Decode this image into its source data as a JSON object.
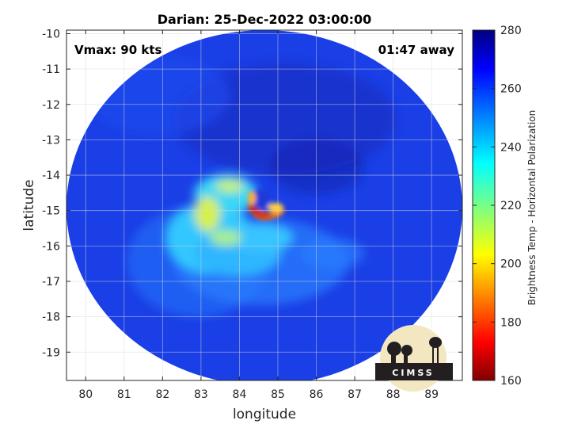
{
  "chart_data": {
    "type": "heatmap",
    "title": "Darian: 25-Dec-2022 03:00:00",
    "xlabel": "longitude",
    "ylabel": "latitude",
    "xlim": [
      79.5,
      89.8
    ],
    "ylim": [
      -19.8,
      -9.9
    ],
    "xticks": [
      80,
      81,
      82,
      83,
      84,
      85,
      86,
      87,
      88,
      89
    ],
    "yticks": [
      -10,
      -11,
      -12,
      -13,
      -14,
      -15,
      -16,
      -17,
      -18,
      -19
    ],
    "grid": true,
    "storm_center": {
      "lon": 84.5,
      "lat": -15.0
    },
    "eye_wall_min_temp": 175,
    "background_temp": 262,
    "annotations": {
      "vmax": "Vmax: 90 kts",
      "time_offset": "01:47 away"
    },
    "colorbar": {
      "label": "Brightness Temp - Horizontal Polarization",
      "range": [
        160,
        280
      ],
      "ticks": [
        160,
        180,
        200,
        220,
        240,
        260,
        280
      ],
      "colormap": "jet"
    }
  },
  "logo": {
    "text": "CIMSS"
  },
  "colors": {
    "background": "#ffffff",
    "axis": "#262626",
    "grid": "#d9d9d9"
  }
}
